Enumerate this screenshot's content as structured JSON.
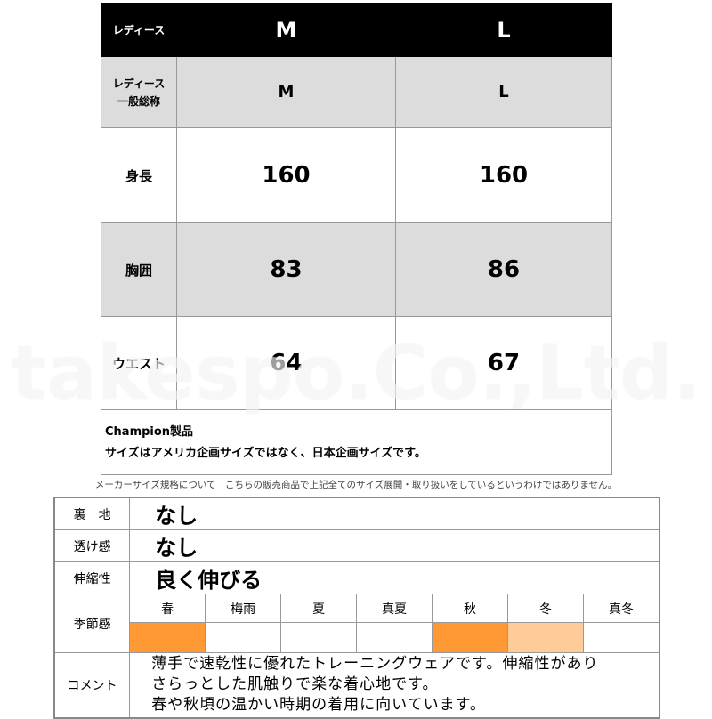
{
  "size_table": {
    "header": {
      "label": "レディース",
      "cols": [
        "M",
        "L"
      ]
    },
    "rows": [
      {
        "label_lines": [
          "レディース",
          "一般総称"
        ],
        "values": [
          "M",
          "L"
        ]
      },
      {
        "label": "身長",
        "values": [
          "160",
          "160"
        ]
      },
      {
        "label": "胸囲",
        "values": [
          "83",
          "86"
        ]
      },
      {
        "label": "ウエスト",
        "values": [
          "64",
          "67"
        ]
      }
    ],
    "note_lines": [
      "Champion製品",
      "サイズはアメリカ企画サイズではなく、日本企画サイズです。"
    ]
  },
  "caption": "メーカーサイズ規格について　こちらの販売商品で上記全てのサイズ展開・取り扱いをしているというわけではありません。",
  "watermark": "takespo.Co.,Ltd.",
  "spec": {
    "lining": {
      "label": "裏　地",
      "value": "なし"
    },
    "sheerness": {
      "label": "透け感",
      "value": "なし"
    },
    "stretch": {
      "label": "伸縮性",
      "value": "良く伸びる"
    },
    "season": {
      "label": "季節感",
      "seasons": [
        {
          "name": "春",
          "level": "high"
        },
        {
          "name": "梅雨",
          "level": "none"
        },
        {
          "name": "夏",
          "level": "none"
        },
        {
          "name": "真夏",
          "level": "none"
        },
        {
          "name": "秋",
          "level": "high"
        },
        {
          "name": "冬",
          "level": "low"
        },
        {
          "name": "真冬",
          "level": "none"
        }
      ],
      "colors": {
        "high": "#ff9933",
        "low": "#ffcc99"
      }
    },
    "comment": {
      "label": "コメント",
      "lines": [
        "薄手で速乾性に優れたトレーニングウェアです。伸縮性があり",
        "さらっとした肌触りで楽な着心地です。",
        "春や秋頃の温かい時期の着用に向いています。"
      ]
    }
  }
}
